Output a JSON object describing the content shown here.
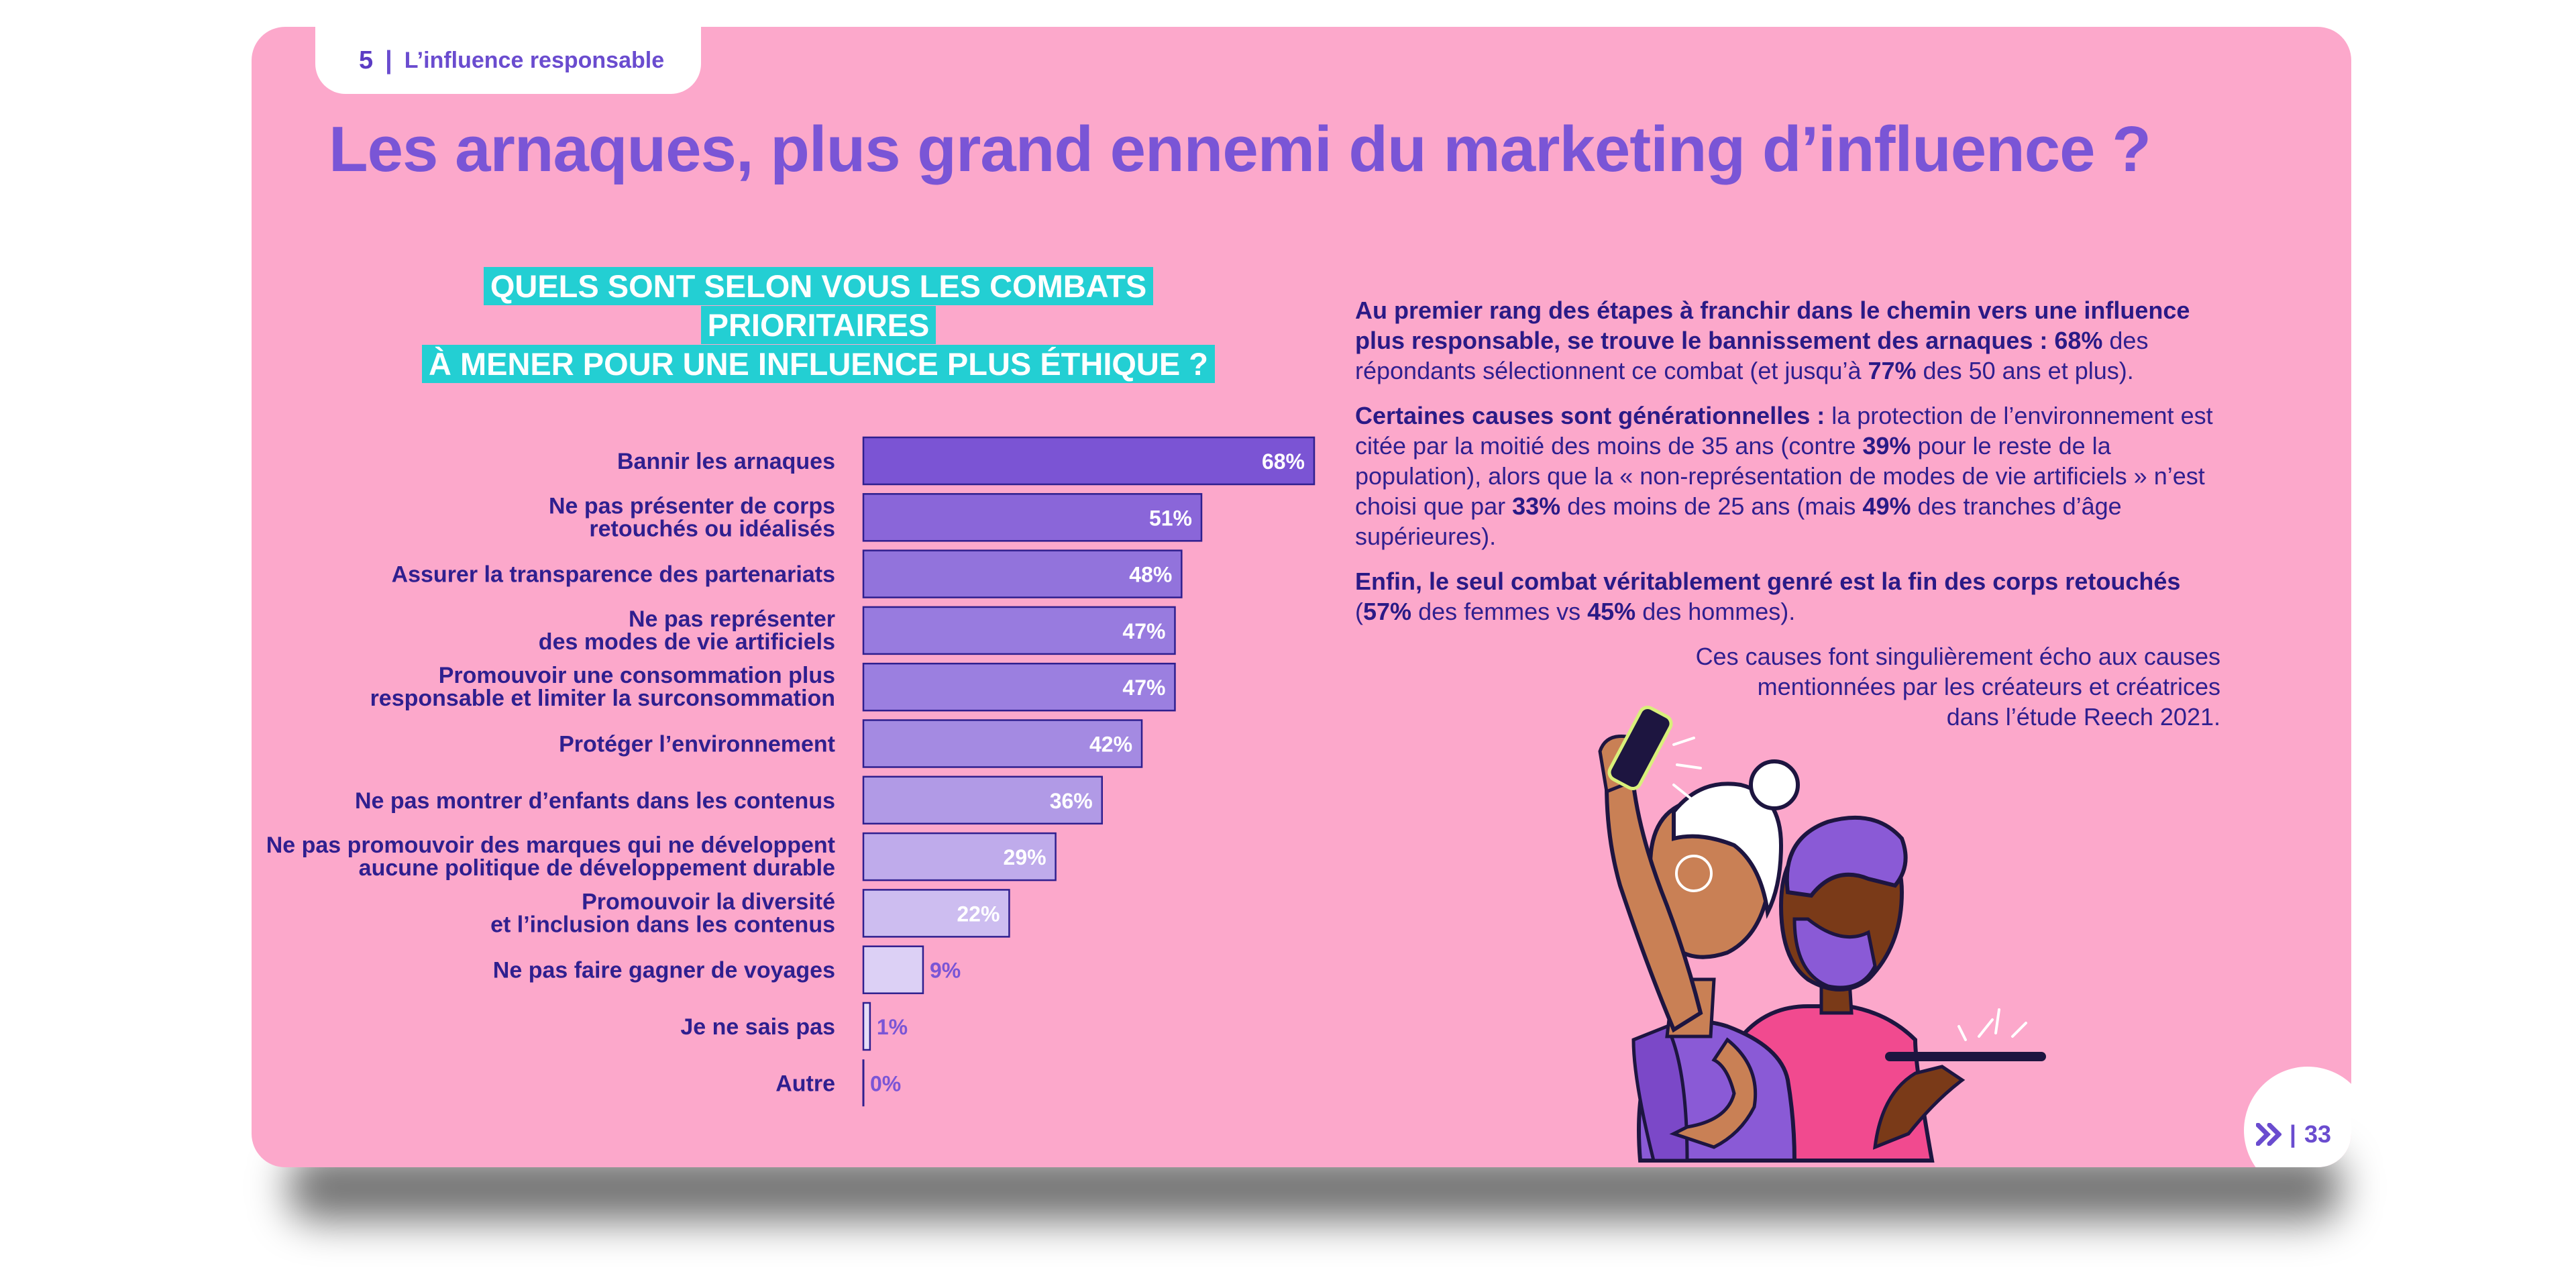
{
  "header": {
    "section_number": "5",
    "section_title": "L’influence responsable"
  },
  "title": "Les arnaques, plus grand ennemi du marketing d’influence ?",
  "question": {
    "line1": "QUELS SONT SELON VOUS LES COMBATS PRIORITAIRES",
    "line2": "À MENER POUR UNE INFLUENCE PLUS ÉTHIQUE ?"
  },
  "chart_data": {
    "type": "bar",
    "orientation": "horizontal",
    "unit": "%",
    "xlim": [
      0,
      68
    ],
    "categories": [
      [
        "Bannir les arnaques"
      ],
      [
        "Ne pas présenter de corps",
        "retouchés ou idéalisés"
      ],
      [
        "Assurer la transparence des partenariats"
      ],
      [
        "Ne pas représenter",
        "des modes de vie artificiels"
      ],
      [
        "Promouvoir une consommation plus",
        "responsable et limiter la surconsommation"
      ],
      [
        "Protéger l’environnement"
      ],
      [
        "Ne pas montrer d’enfants dans les contenus"
      ],
      [
        "Ne pas promouvoir des marques qui ne développent",
        "aucune politique de développement durable"
      ],
      [
        "Promouvoir la diversité",
        "et l’inclusion dans les contenus"
      ],
      [
        "Ne pas faire gagner de voyages"
      ],
      [
        "Je ne sais pas"
      ],
      [
        "Autre"
      ]
    ],
    "values": [
      68,
      51,
      48,
      47,
      47,
      42,
      36,
      29,
      22,
      9,
      1,
      0
    ],
    "bar_colors": [
      "#7b54d4",
      "#8a66d9",
      "#9273dc",
      "#987bdf",
      "#9b7fe0",
      "#a48ae2",
      "#b19ae6",
      "#bfabeb",
      "#cdbdf0",
      "#dcd0f5",
      "#e6ddf7",
      "#ece6f8"
    ]
  },
  "paragraphs": [
    {
      "parts": [
        {
          "b": true,
          "t": "Au premier rang des étapes à franchir dans le chemin vers une influence plus responsable, se trouve le bannissement des arnaques : 68"
        },
        {
          "b": true,
          "t": "%"
        },
        {
          "b": false,
          "t": " des répondants sélectionnent ce combat (et jusqu’à "
        },
        {
          "b": true,
          "t": "77%"
        },
        {
          "b": false,
          "t": " des 50 ans et plus)."
        }
      ]
    },
    {
      "parts": [
        {
          "b": true,
          "t": "Certaines causes sont générationnelles :"
        },
        {
          "b": false,
          "t": " la protection de l’environnement est citée par la moitié des moins de 35 ans (contre "
        },
        {
          "b": true,
          "t": "39%"
        },
        {
          "b": false,
          "t": " pour le reste de la population), alors que la « non-représentation de modes de vie artificiels » n’est choisi que par "
        },
        {
          "b": true,
          "t": "33%"
        },
        {
          "b": false,
          "t": " des moins de 25 ans (mais "
        },
        {
          "b": true,
          "t": "49%"
        },
        {
          "b": false,
          "t": " des tranches d’âge supérieures)."
        }
      ]
    },
    {
      "parts": [
        {
          "b": true,
          "t": "Enfin, le seul combat véritablement genré est la fin des corps retouchés"
        },
        {
          "b": false,
          "t": " ("
        },
        {
          "b": true,
          "t": "57%"
        },
        {
          "b": false,
          "t": " des femmes vs "
        },
        {
          "b": true,
          "t": "45%"
        },
        {
          "b": false,
          "t": " des hommes)."
        }
      ]
    }
  ],
  "credit": {
    "line1": "Ces causes font singulièrement écho aux causes",
    "line2": "mentionnées par les créateurs et créatrices",
    "line3": "dans l’étude Reech 2021."
  },
  "footer": {
    "logo_icon": "reech-x-logo-icon",
    "separator": "|",
    "page_number": "33"
  }
}
